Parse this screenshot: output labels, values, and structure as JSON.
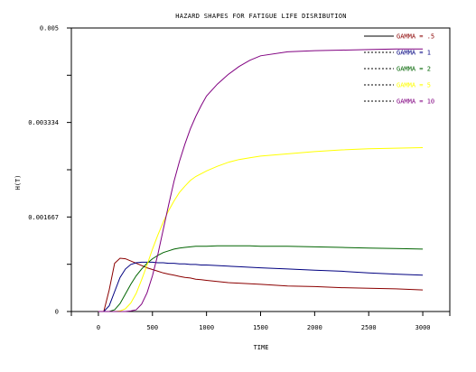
{
  "chart_data": {
    "type": "line",
    "title": "HAZARD SHAPES FOR FATIGUE LIFE DISRIBUTION",
    "xlabel": "TIME",
    "ylabel": "H(T)",
    "xlim": [
      -250,
      3250
    ],
    "ylim": [
      0,
      0.005
    ],
    "x_ticks": [
      0,
      500,
      1000,
      1500,
      2000,
      2500,
      3000
    ],
    "x_tick_labels": [
      "0",
      "500",
      "1000",
      "1500",
      "2000",
      "2500",
      "3000"
    ],
    "y_ticks": [
      0,
      0.001667,
      0.003334,
      0.005
    ],
    "y_tick_labels": [
      "0",
      "0.001667",
      "0.003334",
      "0.005"
    ],
    "y_minor_ticks": [
      0.000833,
      0.0025,
      0.004167
    ],
    "grid": false,
    "legend_position": "top-right",
    "x": [
      0,
      50,
      100,
      150,
      200,
      250,
      300,
      350,
      400,
      450,
      500,
      550,
      600,
      650,
      700,
      750,
      800,
      850,
      900,
      950,
      1000,
      1100,
      1200,
      1300,
      1400,
      1500,
      1750,
      2000,
      2250,
      2500,
      2750,
      3000
    ],
    "series": [
      {
        "name": "GAMMA = .5",
        "color": "#8b0000",
        "values": [
          0,
          0,
          0.00038,
          0.00085,
          0.00094,
          0.00093,
          0.00089,
          0.00085,
          0.00081,
          0.00077,
          0.00074,
          0.00071,
          0.00068,
          0.00066,
          0.00064,
          0.00062,
          0.0006,
          0.00059,
          0.00057,
          0.00056,
          0.00055,
          0.00053,
          0.00051,
          0.0005,
          0.00049,
          0.00048,
          0.00045,
          0.00044,
          0.00042,
          0.00041,
          0.0004,
          0.00038
        ]
      },
      {
        "name": "GAMMA = 1",
        "color": "#000080",
        "values": [
          0,
          0,
          0.0001,
          0.00035,
          0.0006,
          0.00075,
          0.00083,
          0.00086,
          0.00087,
          0.00087,
          0.00087,
          0.00086,
          0.00086,
          0.00085,
          0.00085,
          0.00084,
          0.00084,
          0.00083,
          0.00083,
          0.00082,
          0.00082,
          0.00081,
          0.0008,
          0.00079,
          0.00078,
          0.00077,
          0.00075,
          0.00073,
          0.00071,
          0.00068,
          0.00066,
          0.00064
        ]
      },
      {
        "name": "GAMMA = 2",
        "color": "#006400",
        "values": [
          0,
          0,
          0,
          3e-05,
          0.00014,
          0.00031,
          0.00048,
          0.00063,
          0.00075,
          0.00085,
          0.00093,
          0.00099,
          0.00104,
          0.00107,
          0.0011,
          0.00112,
          0.00113,
          0.00114,
          0.00115,
          0.00115,
          0.00115,
          0.00116,
          0.00116,
          0.00116,
          0.00116,
          0.00115,
          0.00115,
          0.00114,
          0.00113,
          0.00112,
          0.00111,
          0.0011
        ]
      },
      {
        "name": "GAMMA = 5",
        "color": "#ffff00",
        "values": [
          0,
          0,
          0,
          0,
          1e-05,
          5e-05,
          0.00015,
          0.00032,
          0.00056,
          0.00082,
          0.0011,
          0.00135,
          0.00158,
          0.00178,
          0.00195,
          0.0021,
          0.00221,
          0.00231,
          0.00238,
          0.00243,
          0.00248,
          0.00256,
          0.00263,
          0.00268,
          0.00271,
          0.00274,
          0.00278,
          0.00282,
          0.00285,
          0.00287,
          0.00288,
          0.00289
        ]
      },
      {
        "name": "GAMMA = 10",
        "color": "#800080",
        "values": [
          0,
          0,
          0,
          0,
          0,
          0,
          1e-05,
          3e-05,
          0.00013,
          0.00033,
          0.00063,
          0.00101,
          0.00145,
          0.00188,
          0.0023,
          0.00265,
          0.00295,
          0.00322,
          0.00344,
          0.00363,
          0.0038,
          0.00401,
          0.00418,
          0.00432,
          0.00443,
          0.00451,
          0.00458,
          0.0046,
          0.00461,
          0.00462,
          0.00463,
          0.00463
        ]
      }
    ]
  }
}
